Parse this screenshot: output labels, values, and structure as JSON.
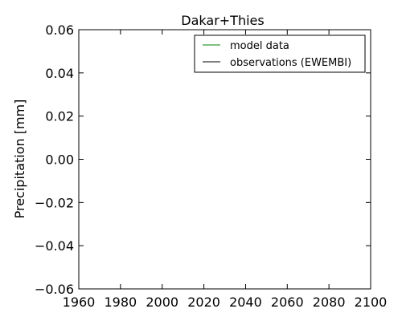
{
  "chart_data": {
    "type": "line",
    "title": "Dakar+Thies",
    "xlabel": "",
    "ylabel": "Precipitation [mm]",
    "xlim": [
      1960,
      2100
    ],
    "ylim": [
      -0.06,
      0.06
    ],
    "x_ticks": [
      1960,
      1980,
      2000,
      2020,
      2040,
      2060,
      2080,
      2100
    ],
    "y_ticks": [
      0.06,
      0.04,
      0.02,
      0.0,
      -0.02,
      -0.04,
      -0.06
    ],
    "x_tick_labels": [
      "1960",
      "1980",
      "2000",
      "2020",
      "2040",
      "2060",
      "2080",
      "2100"
    ],
    "y_tick_labels": [
      "0.06",
      "0.04",
      "0.02",
      "0.00",
      "−0.02",
      "−0.04",
      "−0.06"
    ],
    "grid": false,
    "legend_position": "top-right",
    "series": [
      {
        "name": "model data",
        "color": "#008000",
        "x": [],
        "y": []
      },
      {
        "name": "observations (EWEMBI)",
        "color": "#000000",
        "x": [],
        "y": []
      }
    ]
  }
}
